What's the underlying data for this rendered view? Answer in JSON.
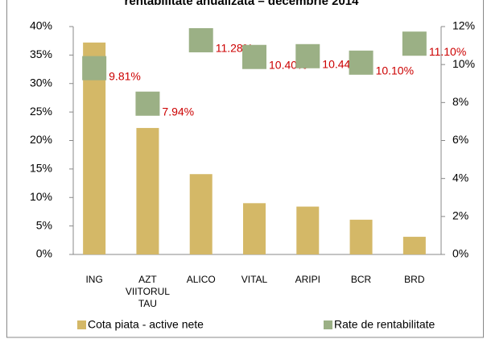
{
  "chart_data": {
    "type": "bar_scatter_combo",
    "title": "rentabilitate anualizata – decembrie 2014",
    "categories": [
      "ING",
      "AZT VIITORUL TAU",
      "ALICO",
      "VITAL",
      "ARIPI",
      "BCR",
      "BRD"
    ],
    "series": [
      {
        "name": "Cota piata - active nete",
        "type": "bar",
        "color": "#d4b867",
        "axis": "y",
        "values": [
          37.2,
          22.2,
          14.1,
          9.0,
          8.4,
          6.1,
          3.1
        ]
      },
      {
        "name": "Rate de rentabilitate",
        "type": "scatter",
        "color": "#9bb085",
        "axis": "y2",
        "values": [
          9.81,
          7.94,
          11.28,
          10.4,
          10.44,
          10.1,
          11.1
        ],
        "value_labels": [
          "9.81%",
          "7.94%",
          "11.28%",
          "10.40%",
          "10.44%",
          "10.10%",
          "11.10%"
        ],
        "label_color": "#cc0000"
      }
    ],
    "ylim": [
      0,
      40
    ],
    "yticks": [
      {
        "value": 0,
        "label": "0%"
      },
      {
        "value": 5,
        "label": "5%"
      },
      {
        "value": 10,
        "label": "10%"
      },
      {
        "value": 15,
        "label": "15%"
      },
      {
        "value": 20,
        "label": "20%"
      },
      {
        "value": 25,
        "label": "25%"
      },
      {
        "value": 30,
        "label": "30%"
      },
      {
        "value": 35,
        "label": "35%"
      },
      {
        "value": 40,
        "label": "40%"
      }
    ],
    "y2lim": [
      0,
      12
    ],
    "y2ticks": [
      {
        "value": 0,
        "label": "0%"
      },
      {
        "value": 2,
        "label": "2%"
      },
      {
        "value": 4,
        "label": "4%"
      },
      {
        "value": 6,
        "label": "6%"
      },
      {
        "value": 8,
        "label": "8%"
      },
      {
        "value": 10,
        "label": "10%"
      },
      {
        "value": 12,
        "label": "12%"
      }
    ],
    "grid": false,
    "legend": "bottom"
  }
}
